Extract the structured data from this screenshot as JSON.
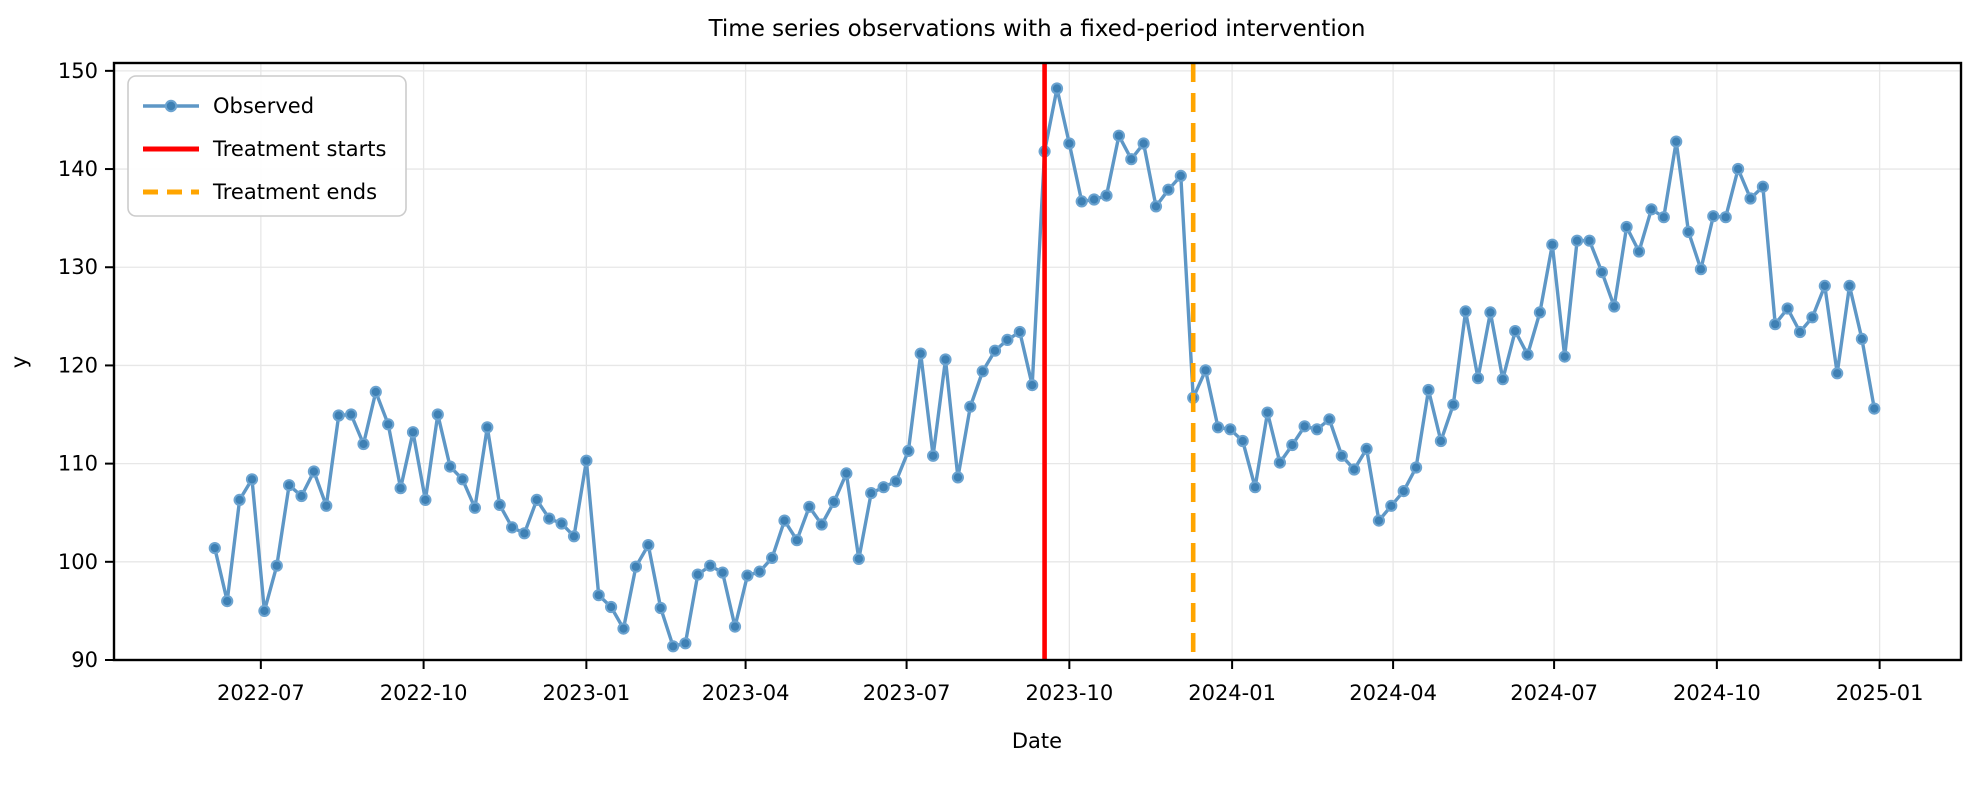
{
  "chart_data": {
    "type": "line",
    "title": "Time series observations with a fixed-period intervention",
    "xlabel": "Date",
    "ylabel": "y",
    "grid": true,
    "legend_position": "upper-left",
    "colors": {
      "observed": "#5e97c6",
      "observed_marker": "#3e80b4",
      "treatment_start": "#ff0000",
      "treatment_end": "#ffa500",
      "grid": "#e7e7e7",
      "spine": "#000000"
    },
    "xlim": [
      "2022-04-09",
      "2025-02-16"
    ],
    "ylim": [
      90,
      150.8
    ],
    "y_ticks": [
      90,
      100,
      110,
      120,
      130,
      140,
      150
    ],
    "x_ticks": [
      {
        "date": "2022-07-01",
        "label": "2022-07"
      },
      {
        "date": "2022-10-01",
        "label": "2022-10"
      },
      {
        "date": "2023-01-01",
        "label": "2023-01"
      },
      {
        "date": "2023-04-01",
        "label": "2023-04"
      },
      {
        "date": "2023-07-01",
        "label": "2023-07"
      },
      {
        "date": "2023-10-01",
        "label": "2023-10"
      },
      {
        "date": "2024-01-01",
        "label": "2024-01"
      },
      {
        "date": "2024-04-01",
        "label": "2024-04"
      },
      {
        "date": "2024-07-01",
        "label": "2024-07"
      },
      {
        "date": "2024-10-01",
        "label": "2024-10"
      },
      {
        "date": "2025-01-01",
        "label": "2025-01"
      }
    ],
    "vlines": [
      {
        "label": "Treatment starts",
        "x": "2023-09-17",
        "color": "#ff0000",
        "style": "solid"
      },
      {
        "label": "Treatment ends",
        "x": "2023-12-10",
        "color": "#ffa500",
        "style": "dashed"
      }
    ],
    "series": [
      {
        "name": "Observed",
        "x": [
          "2022-06-05",
          "2022-06-12",
          "2022-06-19",
          "2022-06-26",
          "2022-07-03",
          "2022-07-10",
          "2022-07-17",
          "2022-07-24",
          "2022-07-31",
          "2022-08-07",
          "2022-08-14",
          "2022-08-21",
          "2022-08-28",
          "2022-09-04",
          "2022-09-11",
          "2022-09-18",
          "2022-09-25",
          "2022-10-02",
          "2022-10-09",
          "2022-10-16",
          "2022-10-23",
          "2022-10-30",
          "2022-11-06",
          "2022-11-13",
          "2022-11-20",
          "2022-11-27",
          "2022-12-04",
          "2022-12-11",
          "2022-12-18",
          "2022-12-25",
          "2023-01-01",
          "2023-01-08",
          "2023-01-15",
          "2023-01-22",
          "2023-01-29",
          "2023-02-05",
          "2023-02-12",
          "2023-02-19",
          "2023-02-26",
          "2023-03-05",
          "2023-03-12",
          "2023-03-19",
          "2023-03-26",
          "2023-04-02",
          "2023-04-09",
          "2023-04-16",
          "2023-04-23",
          "2023-04-30",
          "2023-05-07",
          "2023-05-14",
          "2023-05-21",
          "2023-05-28",
          "2023-06-04",
          "2023-06-11",
          "2023-06-18",
          "2023-06-25",
          "2023-07-02",
          "2023-07-09",
          "2023-07-16",
          "2023-07-23",
          "2023-07-30",
          "2023-08-06",
          "2023-08-13",
          "2023-08-20",
          "2023-08-27",
          "2023-09-03",
          "2023-09-10",
          "2023-09-17",
          "2023-09-24",
          "2023-10-01",
          "2023-10-08",
          "2023-10-15",
          "2023-10-22",
          "2023-10-29",
          "2023-11-05",
          "2023-11-12",
          "2023-11-19",
          "2023-11-26",
          "2023-12-03",
          "2023-12-10",
          "2023-12-17",
          "2023-12-24",
          "2023-12-31",
          "2024-01-07",
          "2024-01-14",
          "2024-01-21",
          "2024-01-28",
          "2024-02-04",
          "2024-02-11",
          "2024-02-18",
          "2024-02-25",
          "2024-03-03",
          "2024-03-10",
          "2024-03-17",
          "2024-03-24",
          "2024-03-31",
          "2024-04-07",
          "2024-04-14",
          "2024-04-21",
          "2024-04-28",
          "2024-05-05",
          "2024-05-12",
          "2024-05-19",
          "2024-05-26",
          "2024-06-02",
          "2024-06-09",
          "2024-06-16",
          "2024-06-23",
          "2024-06-30",
          "2024-07-07",
          "2024-07-14",
          "2024-07-21",
          "2024-07-28",
          "2024-08-04",
          "2024-08-11",
          "2024-08-18",
          "2024-08-25",
          "2024-09-01",
          "2024-09-08",
          "2024-09-15",
          "2024-09-22",
          "2024-09-29",
          "2024-10-06",
          "2024-10-13",
          "2024-10-20",
          "2024-10-27",
          "2024-11-03",
          "2024-11-10",
          "2024-11-17",
          "2024-11-24",
          "2024-12-01",
          "2024-12-08",
          "2024-12-15",
          "2024-12-22",
          "2024-12-29"
        ],
        "y": [
          101.4,
          96.0,
          106.3,
          108.4,
          95.0,
          99.6,
          107.8,
          106.7,
          109.2,
          105.7,
          114.9,
          115.0,
          112.0,
          117.3,
          114.0,
          107.5,
          113.2,
          106.3,
          115.0,
          109.7,
          108.4,
          105.5,
          113.7,
          105.8,
          103.5,
          102.9,
          106.3,
          104.4,
          103.9,
          102.6,
          110.3,
          96.6,
          95.4,
          93.2,
          99.5,
          101.7,
          95.3,
          91.4,
          91.7,
          98.7,
          99.6,
          98.9,
          93.4,
          98.6,
          99.0,
          100.4,
          104.2,
          102.2,
          105.6,
          103.8,
          106.1,
          109.0,
          100.3,
          107.0,
          107.6,
          108.2,
          111.3,
          121.2,
          110.8,
          120.6,
          108.6,
          115.8,
          119.4,
          121.5,
          122.6,
          123.4,
          118.0,
          141.8,
          148.2,
          142.6,
          136.7,
          136.9,
          137.3,
          143.4,
          141.0,
          142.6,
          136.2,
          137.9,
          139.3,
          116.7,
          119.5,
          113.7,
          113.5,
          112.3,
          107.6,
          115.2,
          110.1,
          111.9,
          113.8,
          113.5,
          114.5,
          110.8,
          109.4,
          111.5,
          104.2,
          105.7,
          107.2,
          109.6,
          117.5,
          112.3,
          116.0,
          125.5,
          118.7,
          125.4,
          118.6,
          123.5,
          121.1,
          125.4,
          132.3,
          120.9,
          132.7,
          132.7,
          129.5,
          126.0,
          134.1,
          131.6,
          135.9,
          135.1,
          142.8,
          133.6,
          129.8,
          135.2,
          135.1,
          140.0,
          137.0,
          138.2,
          124.2,
          125.8,
          123.4,
          124.9,
          128.1,
          119.2,
          128.1,
          122.7,
          115.6
        ]
      }
    ]
  }
}
